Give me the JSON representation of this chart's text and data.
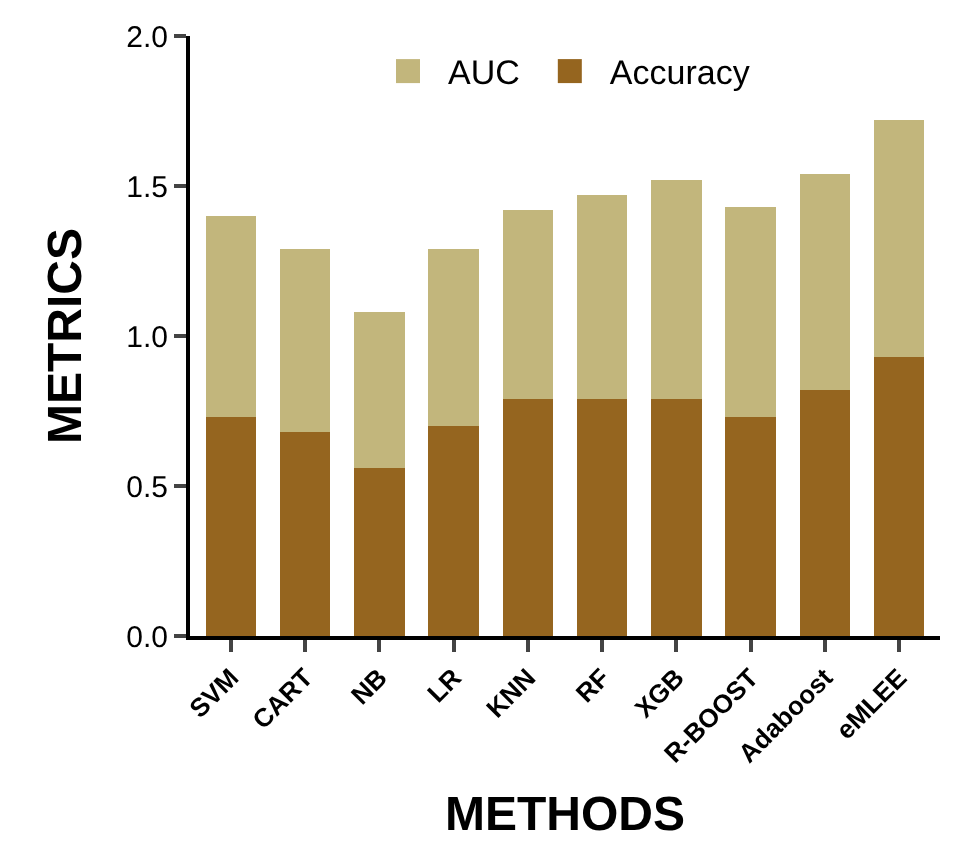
{
  "chart_data": {
    "type": "bar",
    "stacked": true,
    "xlabel": "METHODS",
    "ylabel": "METRICS",
    "categories": [
      "SVM",
      "CART",
      "NB",
      "LR",
      "KNN",
      "RF",
      "XGB",
      "R-BOOST",
      "Adaboost",
      "eMLEE"
    ],
    "series": [
      {
        "name": "Accuracy",
        "color": "#95651f",
        "values": [
          0.73,
          0.68,
          0.56,
          0.7,
          0.79,
          0.79,
          0.79,
          0.73,
          0.82,
          0.93
        ]
      },
      {
        "name": "AUC",
        "color": "#c2b67c",
        "values": [
          0.67,
          0.61,
          0.52,
          0.59,
          0.63,
          0.68,
          0.73,
          0.7,
          0.72,
          0.79
        ]
      }
    ],
    "ylim": [
      0,
      2.0
    ],
    "yticks": [
      {
        "value": 0,
        "label": "0.0"
      },
      {
        "value": 0.5,
        "label": "0.5"
      },
      {
        "value": 1.0,
        "label": "1.0"
      },
      {
        "value": 1.5,
        "label": "1.5"
      },
      {
        "value": 2.0,
        "label": "2.0"
      }
    ],
    "legend": "top"
  }
}
